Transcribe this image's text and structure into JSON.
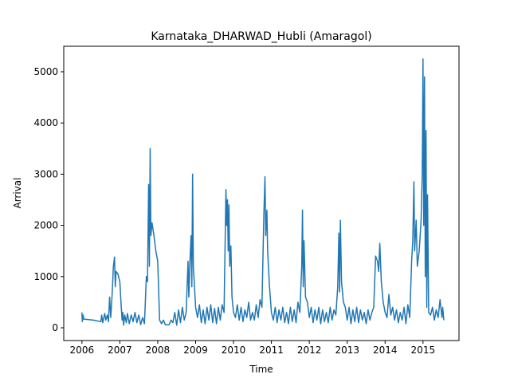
{
  "chart_data": {
    "type": "line",
    "title": "Karnataka_DHARWAD_Hubli (Amaragol)",
    "xlabel": "Time",
    "ylabel": "Arrival",
    "xlim": [
      2005.52,
      2015.95
    ],
    "ylim": [
      -249,
      5498
    ],
    "xticks": [
      2006,
      2007,
      2008,
      2009,
      2010,
      2011,
      2012,
      2013,
      2014,
      2015
    ],
    "yticks": [
      0,
      1000,
      2000,
      3000,
      4000,
      5000
    ],
    "grid": false,
    "series": [
      {
        "color": "#1f77b4",
        "x": [
          2006.0,
          2006.01,
          2006.03,
          2006.05,
          2006.3,
          2006.5,
          2006.52,
          2006.55,
          2006.6,
          2006.63,
          2006.67,
          2006.7,
          2006.73,
          2006.76,
          2006.8,
          2006.83,
          2006.86,
          2006.88,
          2006.9,
          2006.95,
          2007.0,
          2007.03,
          2007.06,
          2007.08,
          2007.1,
          2007.13,
          2007.17,
          2007.2,
          2007.25,
          2007.3,
          2007.35,
          2007.4,
          2007.45,
          2007.5,
          2007.55,
          2007.6,
          2007.65,
          2007.7,
          2007.73,
          2007.76,
          2007.78,
          2007.8,
          2007.82,
          2007.85,
          2007.9,
          2007.95,
          2008.0,
          2008.03,
          2008.05,
          2008.1,
          2008.15,
          2008.2,
          2008.3,
          2008.35,
          2008.4,
          2008.45,
          2008.5,
          2008.55,
          2008.6,
          2008.65,
          2008.7,
          2008.75,
          2008.8,
          2008.82,
          2008.85,
          2008.88,
          2008.9,
          2008.92,
          2008.94,
          2008.97,
          2009.0,
          2009.05,
          2009.1,
          2009.15,
          2009.2,
          2009.25,
          2009.3,
          2009.35,
          2009.4,
          2009.45,
          2009.5,
          2009.55,
          2009.6,
          2009.65,
          2009.7,
          2009.75,
          2009.8,
          2009.82,
          2009.84,
          2009.86,
          2009.88,
          2009.9,
          2009.93,
          2009.96,
          2010.0,
          2010.05,
          2010.1,
          2010.15,
          2010.2,
          2010.25,
          2010.3,
          2010.35,
          2010.4,
          2010.45,
          2010.5,
          2010.55,
          2010.6,
          2010.65,
          2010.7,
          2010.75,
          2010.78,
          2010.8,
          2010.83,
          2010.85,
          2010.88,
          2010.9,
          2010.95,
          2011.0,
          2011.05,
          2011.1,
          2011.15,
          2011.2,
          2011.25,
          2011.3,
          2011.35,
          2011.4,
          2011.45,
          2011.5,
          2011.55,
          2011.6,
          2011.65,
          2011.7,
          2011.75,
          2011.8,
          2011.82,
          2011.84,
          2011.86,
          2011.9,
          2011.95,
          2012.0,
          2012.05,
          2012.1,
          2012.15,
          2012.2,
          2012.25,
          2012.3,
          2012.35,
          2012.4,
          2012.45,
          2012.5,
          2012.55,
          2012.6,
          2012.65,
          2012.7,
          2012.75,
          2012.78,
          2012.8,
          2012.82,
          2012.85,
          2012.9,
          2012.95,
          2013.0,
          2013.05,
          2013.1,
          2013.15,
          2013.2,
          2013.25,
          2013.3,
          2013.35,
          2013.4,
          2013.45,
          2013.5,
          2013.55,
          2013.6,
          2013.65,
          2013.7,
          2013.75,
          2013.8,
          2013.83,
          2013.86,
          2013.9,
          2013.95,
          2014.0,
          2014.05,
          2014.1,
          2014.15,
          2014.2,
          2014.25,
          2014.3,
          2014.35,
          2014.4,
          2014.45,
          2014.5,
          2014.55,
          2014.6,
          2014.65,
          2014.7,
          2014.73,
          2014.76,
          2014.78,
          2014.82,
          2014.85,
          2014.9,
          2014.95,
          2014.98,
          2015.0,
          2015.02,
          2015.04,
          2015.06,
          2015.08,
          2015.1,
          2015.12,
          2015.15,
          2015.2,
          2015.25,
          2015.3,
          2015.35,
          2015.4,
          2015.45,
          2015.5,
          2015.52,
          2015.55
        ],
        "values": [
          300,
          120,
          250,
          170,
          150,
          120,
          250,
          100,
          280,
          150,
          250,
          120,
          600,
          200,
          700,
          1200,
          1380,
          800,
          1100,
          1050,
          900,
          500,
          150,
          300,
          50,
          250,
          100,
          280,
          80,
          250,
          120,
          300,
          100,
          250,
          60,
          200,
          80,
          1000,
          900,
          2800,
          1200,
          3500,
          1800,
          2050,
          1800,
          1500,
          1300,
          600,
          150,
          80,
          150,
          60,
          60,
          150,
          100,
          300,
          50,
          350,
          100,
          400,
          150,
          300,
          1300,
          600,
          1300,
          1800,
          800,
          3000,
          1200,
          800,
          400,
          200,
          450,
          100,
          350,
          80,
          400,
          150,
          450,
          100,
          380,
          80,
          400,
          150,
          450,
          300,
          2700,
          2000,
          2500,
          1500,
          2400,
          1200,
          1600,
          600,
          300,
          200,
          450,
          150,
          400,
          120,
          350,
          200,
          500,
          150,
          300,
          150,
          450,
          200,
          550,
          400,
          1500,
          2200,
          2950,
          1800,
          2300,
          1500,
          800,
          300,
          150,
          400,
          100,
          350,
          150,
          400,
          100,
          300,
          80,
          400,
          120,
          350,
          100,
          500,
          300,
          1200,
          2300,
          800,
          1700,
          600,
          500,
          200,
          400,
          100,
          350,
          150,
          400,
          80,
          350,
          120,
          300,
          100,
          400,
          150,
          350,
          250,
          800,
          1850,
          700,
          2100,
          900,
          500,
          400,
          150,
          400,
          80,
          350,
          120,
          400,
          100,
          350,
          150,
          300,
          80,
          350,
          150,
          300,
          400,
          1400,
          1300,
          1100,
          1650,
          900,
          500,
          300,
          200,
          650,
          250,
          400,
          150,
          350,
          100,
          300,
          150,
          400,
          80,
          450,
          200,
          1300,
          1700,
          2850,
          1500,
          2100,
          1200,
          1500,
          2100,
          3000,
          5250,
          2000,
          4900,
          1000,
          3850,
          400,
          2600,
          300,
          250,
          400,
          150,
          350,
          200,
          550,
          200,
          400,
          150
        ]
      }
    ]
  }
}
